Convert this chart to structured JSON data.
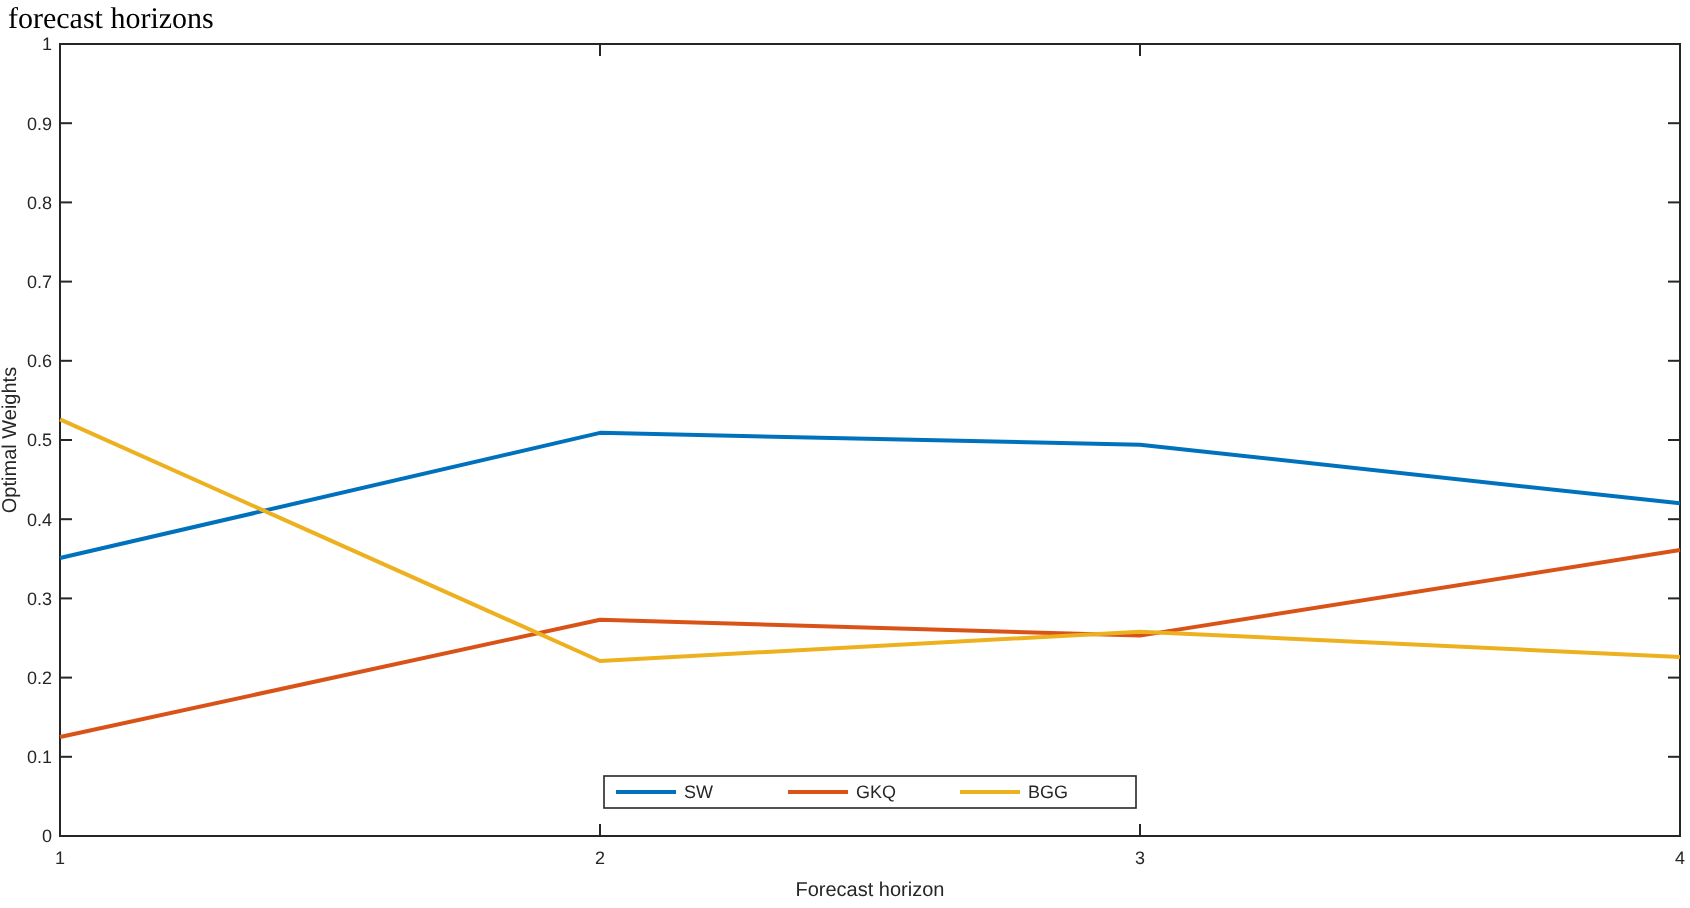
{
  "chart_data": {
    "type": "line",
    "title": "forecast horizons",
    "xlabel": "Forecast horizon",
    "ylabel": "Optimal Weights",
    "x": [
      1,
      2,
      3,
      4
    ],
    "xlim": [
      1,
      4
    ],
    "xticks": [
      1,
      2,
      3,
      4
    ],
    "ylim": [
      0,
      1
    ],
    "yticks": [
      0,
      0.1,
      0.2,
      0.3,
      0.4,
      0.5,
      0.6,
      0.7,
      0.8,
      0.9,
      1
    ],
    "grid": false,
    "legend": "bottom",
    "line_style": "solid",
    "marker": "none",
    "series": [
      {
        "name": "SW",
        "color": "#0072bd",
        "values": [
          0.351,
          0.509,
          0.494,
          0.42
        ]
      },
      {
        "name": "GKQ",
        "color": "#d95319",
        "values": [
          0.125,
          0.273,
          0.253,
          0.361
        ]
      },
      {
        "name": "BGG",
        "color": "#edb120",
        "values": [
          0.526,
          0.221,
          0.258,
          0.226
        ]
      }
    ]
  }
}
